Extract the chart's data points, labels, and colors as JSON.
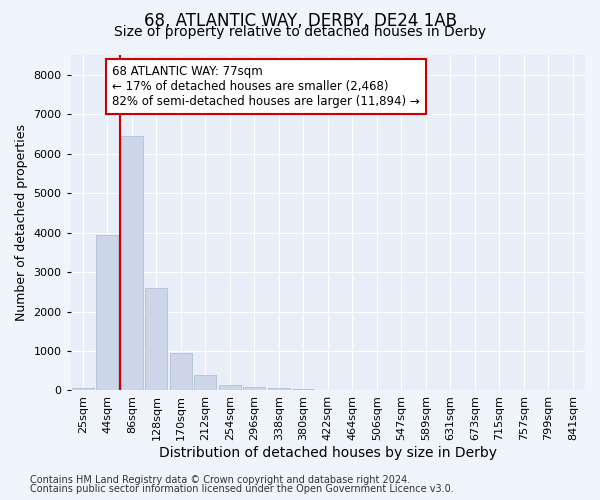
{
  "title": "68, ATLANTIC WAY, DERBY, DE24 1AB",
  "subtitle": "Size of property relative to detached houses in Derby",
  "xlabel": "Distribution of detached houses by size in Derby",
  "ylabel": "Number of detached properties",
  "categories": [
    "25sqm",
    "44sqm",
    "86sqm",
    "128sqm",
    "170sqm",
    "212sqm",
    "254sqm",
    "296sqm",
    "338sqm",
    "380sqm",
    "422sqm",
    "464sqm",
    "506sqm",
    "547sqm",
    "589sqm",
    "631sqm",
    "673sqm",
    "715sqm",
    "757sqm",
    "799sqm",
    "841sqm"
  ],
  "values": [
    50,
    3950,
    6450,
    2600,
    950,
    400,
    130,
    100,
    70,
    40,
    20,
    0,
    0,
    0,
    0,
    0,
    0,
    0,
    0,
    0,
    0
  ],
  "bar_color": "#ccd6e8",
  "bar_edge_color": "#aabbd0",
  "property_line_x": 1.5,
  "property_line_color": "#cc0000",
  "annotation_line1": "68 ATLANTIC WAY: 77sqm",
  "annotation_line2": "← 17% of detached houses are smaller (2,468)",
  "annotation_line3": "82% of semi-detached houses are larger (11,894) →",
  "annotation_box_color": "#ffffff",
  "annotation_box_edge": "#cc0000",
  "footer_line1": "Contains HM Land Registry data © Crown copyright and database right 2024.",
  "footer_line2": "Contains public sector information licensed under the Open Government Licence v3.0.",
  "background_color": "#f0f4fb",
  "plot_bg_color": "#e8eef8",
  "grid_color": "#ffffff",
  "ylim": [
    0,
    8500
  ],
  "title_fontsize": 12,
  "subtitle_fontsize": 10,
  "xlabel_fontsize": 10,
  "ylabel_fontsize": 9,
  "tick_fontsize": 8,
  "annotation_fontsize": 8.5,
  "footer_fontsize": 7
}
